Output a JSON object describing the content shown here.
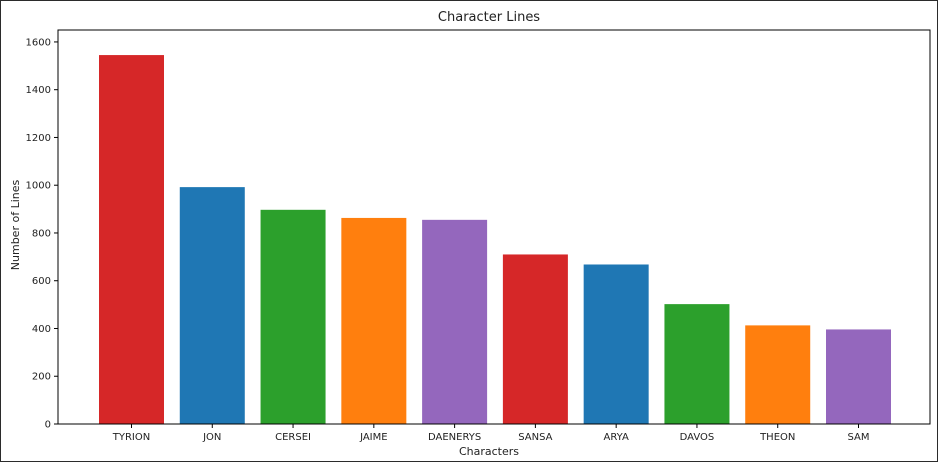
{
  "chart_data": {
    "type": "bar",
    "title": "Character Lines",
    "xlabel": "Characters",
    "ylabel": "Number of Lines",
    "categories": [
      "TYRION",
      "JON",
      "CERSEI",
      "JAIME",
      "DAENERYS",
      "SANSA",
      "ARYA",
      "DAVOS",
      "THEON",
      "SAM"
    ],
    "values": [
      1545,
      992,
      897,
      863,
      855,
      710,
      668,
      502,
      413,
      396
    ],
    "colors": [
      "#d62728",
      "#1f77b4",
      "#2ca02c",
      "#ff7f0e",
      "#9467bd",
      "#d62728",
      "#1f77b4",
      "#2ca02c",
      "#ff7f0e",
      "#9467bd"
    ],
    "ylim": [
      0,
      1650
    ],
    "yticks": [
      "0",
      "200",
      "400",
      "600",
      "800",
      "1000",
      "1200",
      "1400",
      "1600"
    ],
    "grid": false,
    "legend": false
  }
}
